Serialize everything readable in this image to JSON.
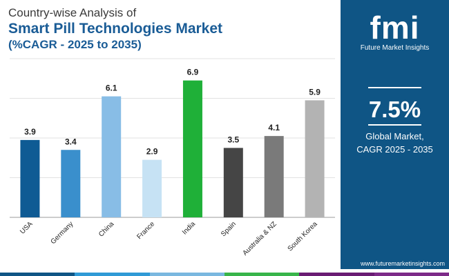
{
  "header": {
    "line1": "Country-wise Analysis of",
    "line2": "Smart Pill Technologies Market",
    "line3": "(%CAGR - 2025 to 2035)"
  },
  "chart_data": {
    "type": "bar",
    "title": "Smart Pill Technologies Market",
    "categories": [
      "USA",
      "Germany",
      "China",
      "France",
      "India",
      "Spain",
      "Australia & NZ",
      "South Korea"
    ],
    "values": [
      3.9,
      3.4,
      6.1,
      2.9,
      6.9,
      3.5,
      4.1,
      5.9
    ],
    "value_labels": [
      "3.9",
      "3.4",
      "6.1",
      "2.9",
      "6.9",
      "3.5",
      "4.1",
      "5.9"
    ],
    "colors": [
      "#0f5b94",
      "#3a8fcc",
      "#88bde6",
      "#c6e2f4",
      "#1fb038",
      "#454545",
      "#7a7a7a",
      "#b3b3b3"
    ],
    "ylim": [
      0,
      8
    ],
    "xlabel": "",
    "ylabel": ""
  },
  "panel": {
    "logo_text": "fmi",
    "logo_subtitle": "Future Market Insights",
    "big_value": "7.5%",
    "caption_line1": "Global Market,",
    "caption_line2": "CAGR 2025 - 2035",
    "url": "www.futuremarketinsights.com"
  },
  "colors": {
    "panel_bg": "#0f5585",
    "title_blue": "#1a5c96",
    "strip": [
      "#0f5585",
      "#2f9ad6",
      "#7ab8e0",
      "#38b54a",
      "#6a1b73",
      "#7d2a88"
    ]
  }
}
